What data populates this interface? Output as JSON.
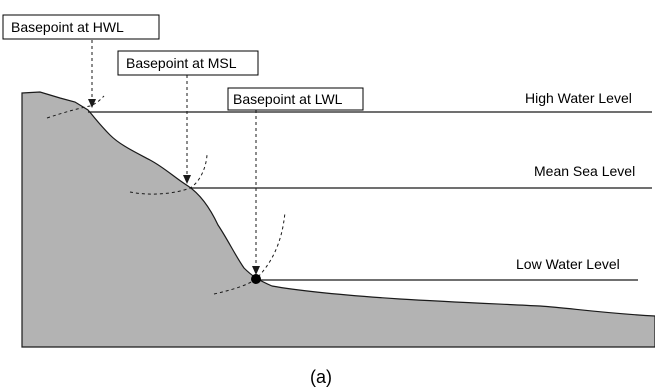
{
  "callouts": {
    "hwl": "Basepoint at HWL",
    "msl": "Basepoint at MSL",
    "lwl": "Basepoint at LWL"
  },
  "levels": {
    "high": "High Water Level",
    "mean": "Mean Sea Level",
    "low": "Low Water Level"
  },
  "caption": "(a)",
  "colors": {
    "terrain": "#b3b3b3",
    "line": "#1a1a1a",
    "box_border": "#000000",
    "background": "#ffffff"
  }
}
